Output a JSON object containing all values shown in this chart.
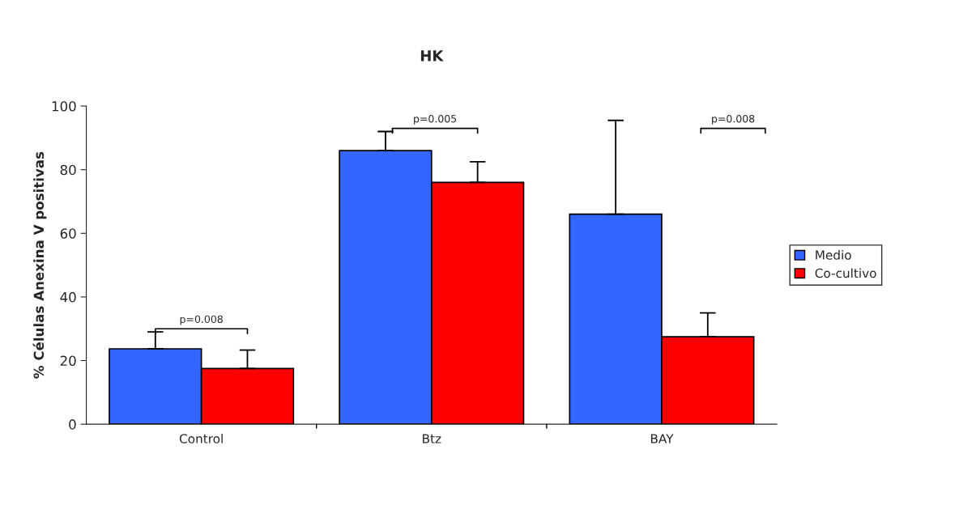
{
  "chart_data": {
    "type": "bar",
    "title": "HK",
    "ylabel": "% Células Anexina V positivas",
    "categories": [
      "Control",
      "Btz",
      "BAY"
    ],
    "series": [
      {
        "name": "Medio",
        "color": "#3366ff",
        "values": [
          23.7,
          86,
          66
        ],
        "errors": [
          [
            23.7,
            29
          ],
          [
            86,
            92
          ],
          [
            66,
            95.5
          ]
        ]
      },
      {
        "name": "Co-cultivo",
        "color": "#ff0000",
        "values": [
          17.5,
          76,
          27.5
        ],
        "errors": [
          [
            17.5,
            23.3
          ],
          [
            76,
            82.5
          ],
          [
            27.5,
            35
          ]
        ]
      }
    ],
    "ylim": [
      0,
      100
    ],
    "yticks": [
      0,
      20,
      40,
      60,
      80,
      100
    ],
    "grid": false,
    "legend": "right",
    "annotations": [
      "p=0.008",
      "p=0.005",
      "p=0.008"
    ]
  }
}
